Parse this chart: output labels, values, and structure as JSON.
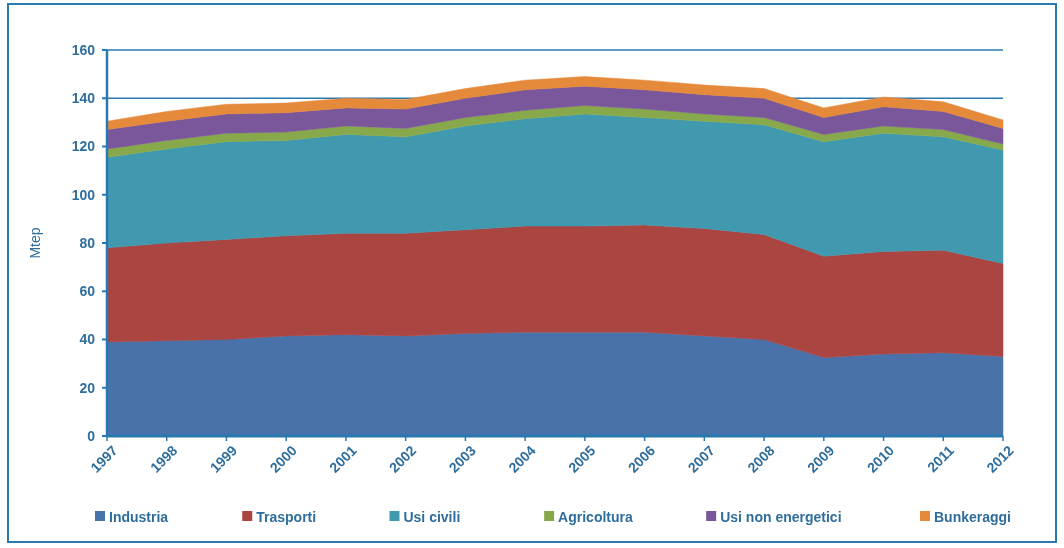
{
  "chart_data": {
    "type": "area",
    "stacked": true,
    "ylabel": "Mtep",
    "categories": [
      "1997",
      "1998",
      "1999",
      "2000",
      "2001",
      "2002",
      "2003",
      "2004",
      "2005",
      "2006",
      "2007",
      "2008",
      "2009",
      "2010",
      "2011",
      "2012"
    ],
    "series": [
      {
        "name": "Industria",
        "color": "#4a72aa",
        "values": [
          39,
          39.5,
          40,
          41.5,
          42,
          41.5,
          42.5,
          43,
          43,
          43,
          41.5,
          40,
          32.5,
          34,
          34.5,
          33
        ]
      },
      {
        "name": "Trasporti",
        "color": "#ab4542",
        "values": [
          39,
          40.5,
          41.5,
          41.5,
          42,
          42.5,
          43,
          44,
          44,
          44.5,
          44.5,
          43.5,
          42,
          42.5,
          42.5,
          38.5
        ]
      },
      {
        "name": "Usi civili",
        "color": "#4199b0",
        "values": [
          37.5,
          39,
          40.5,
          39.5,
          41,
          40,
          43,
          44.5,
          46.5,
          44.5,
          44.5,
          45.5,
          47.5,
          49,
          47,
          47
        ]
      },
      {
        "name": "Agricoltura",
        "color": "#88a94b",
        "values": [
          3.5,
          3.5,
          3.5,
          3.5,
          3.5,
          3.5,
          3.5,
          3.5,
          3.5,
          3.5,
          3,
          3,
          3,
          3,
          3,
          2.5
        ]
      },
      {
        "name": "Usi non energetici",
        "color": "#7a579a",
        "values": [
          8,
          8,
          8,
          8,
          7.5,
          8,
          8,
          8.5,
          8,
          8,
          8,
          8,
          7,
          8,
          7.5,
          6.5
        ]
      },
      {
        "name": "Bunkeraggi",
        "color": "#e5893a",
        "values": [
          3.5,
          4,
          4,
          4,
          4,
          4,
          4,
          4,
          4,
          4,
          4,
          4,
          4,
          4,
          4,
          3.5
        ]
      }
    ],
    "ylim": [
      0,
      160
    ],
    "yticks": [
      0,
      20,
      40,
      60,
      80,
      100,
      120,
      140,
      160
    ],
    "grid": "y",
    "legend": "bottom"
  }
}
